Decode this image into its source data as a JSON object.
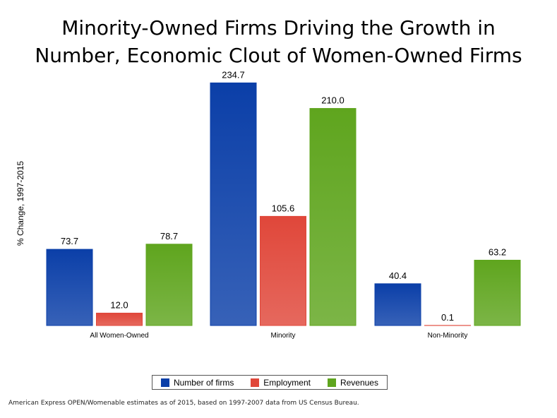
{
  "chart_data": {
    "type": "bar",
    "title_lines": [
      "Minority-Owned Firms Driving the Growth in",
      "Number, Economic Clout of Women-Owned Firms"
    ],
    "ylabel": "% Change, 1997-2015",
    "xlabel": "",
    "ylim": [
      0,
      250
    ],
    "grid": false,
    "legend_position": "bottom",
    "categories": [
      "All Women-Owned",
      "Minority",
      "Non-Minority"
    ],
    "series": [
      {
        "name": "Number of firms",
        "values": [
          73.7,
          234.7,
          40.4
        ],
        "labels": [
          "73.7",
          "234.7",
          "40.4"
        ],
        "color": "#0b3fa8"
      },
      {
        "name": "Employment",
        "values": [
          12.0,
          105.6,
          0.1
        ],
        "labels": [
          "12.0",
          "105.6",
          "0.1"
        ],
        "color": "#e0473a"
      },
      {
        "name": "Revenues",
        "values": [
          78.7,
          210.0,
          63.2
        ],
        "labels": [
          "78.7",
          "210.0",
          "63.2"
        ],
        "color": "#5fa51e"
      }
    ]
  },
  "footnote": "American Express OPEN/Womenable estimates as of 2015, based on 1997-2007 data from US Census Bureau."
}
